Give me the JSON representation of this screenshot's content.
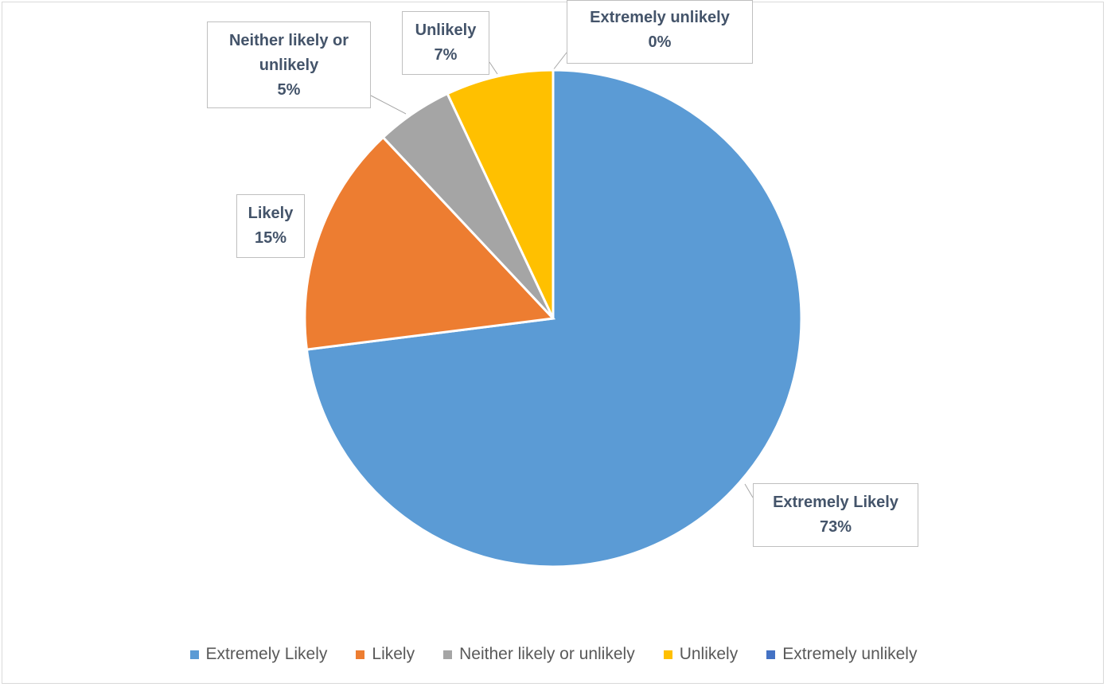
{
  "chart_data": {
    "type": "pie",
    "title": "",
    "slices": [
      {
        "label": "Extremely Likely",
        "value": 73,
        "display": "73%",
        "color": "#5b9bd5"
      },
      {
        "label": "Likely",
        "value": 15,
        "display": "15%",
        "color": "#ed7d31"
      },
      {
        "label": "Neither likely or unlikely",
        "value": 5,
        "display": "5%",
        "color": "#a5a5a5"
      },
      {
        "label": "Unlikely",
        "value": 7,
        "display": "7%",
        "color": "#ffc000"
      },
      {
        "label": "Extremely unlikely",
        "value": 0,
        "display": "0%",
        "color": "#4472c4"
      }
    ],
    "callouts": [
      {
        "name": "Extremely Likely",
        "lines": [
          "Extremely Likely"
        ],
        "value": "73%"
      },
      {
        "name": "Likely",
        "lines": [
          "Likely"
        ],
        "value": "15%"
      },
      {
        "name": "Neither likely or unlikely",
        "lines": [
          "Neither likely or",
          "unlikely"
        ],
        "value": "5%"
      },
      {
        "name": "Unlikely",
        "lines": [
          "Unlikely"
        ],
        "value": "7%"
      },
      {
        "name": "Extremely unlikely",
        "lines": [
          "Extremely unlikely"
        ],
        "value": "0%"
      }
    ],
    "legend_position": "bottom"
  }
}
